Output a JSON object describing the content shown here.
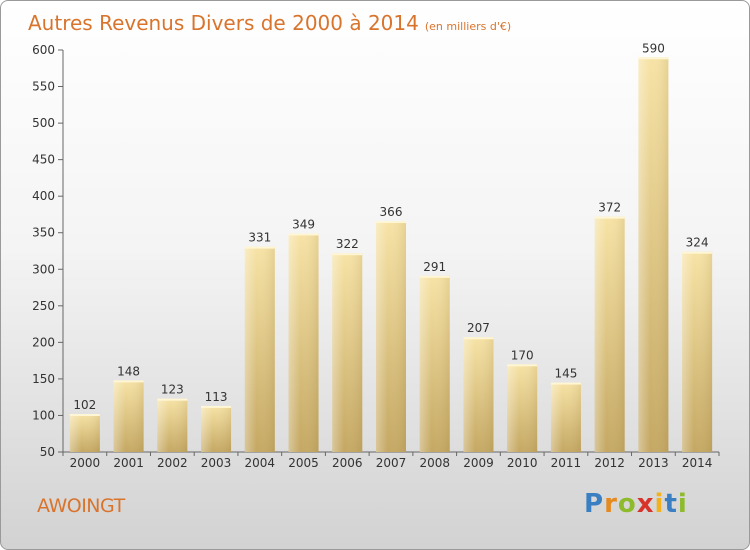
{
  "title": "Autres Revenus Divers de 2000 à 2014",
  "unit_note": "(en milliers d'€)",
  "commune": "AWOINGT",
  "logo": {
    "letters": [
      "P",
      "r",
      "o",
      "x",
      "i",
      "t",
      "i"
    ],
    "colors": [
      "#3a7fc1",
      "#e58a1f",
      "#8dbb2b",
      "#d8332a",
      "#f2b21e",
      "#3a7fc1",
      "#8dbb2b"
    ]
  },
  "colors": {
    "bar": "#e8cf86",
    "title": "#d9742d"
  },
  "chart_data": {
    "type": "bar",
    "categories": [
      "2000",
      "2001",
      "2002",
      "2003",
      "2004",
      "2005",
      "2006",
      "2007",
      "2008",
      "2009",
      "2010",
      "2011",
      "2012",
      "2013",
      "2014"
    ],
    "values": [
      102,
      148,
      123,
      113,
      331,
      349,
      322,
      366,
      291,
      207,
      170,
      145,
      372,
      590,
      324
    ],
    "ylim": [
      50,
      600
    ],
    "yticks": [
      50,
      100,
      150,
      200,
      250,
      300,
      350,
      400,
      450,
      500,
      550,
      600
    ],
    "title": "Autres Revenus Divers de 2000 à 2014",
    "xlabel": "",
    "ylabel": "",
    "grid": false,
    "data_labels": true
  }
}
